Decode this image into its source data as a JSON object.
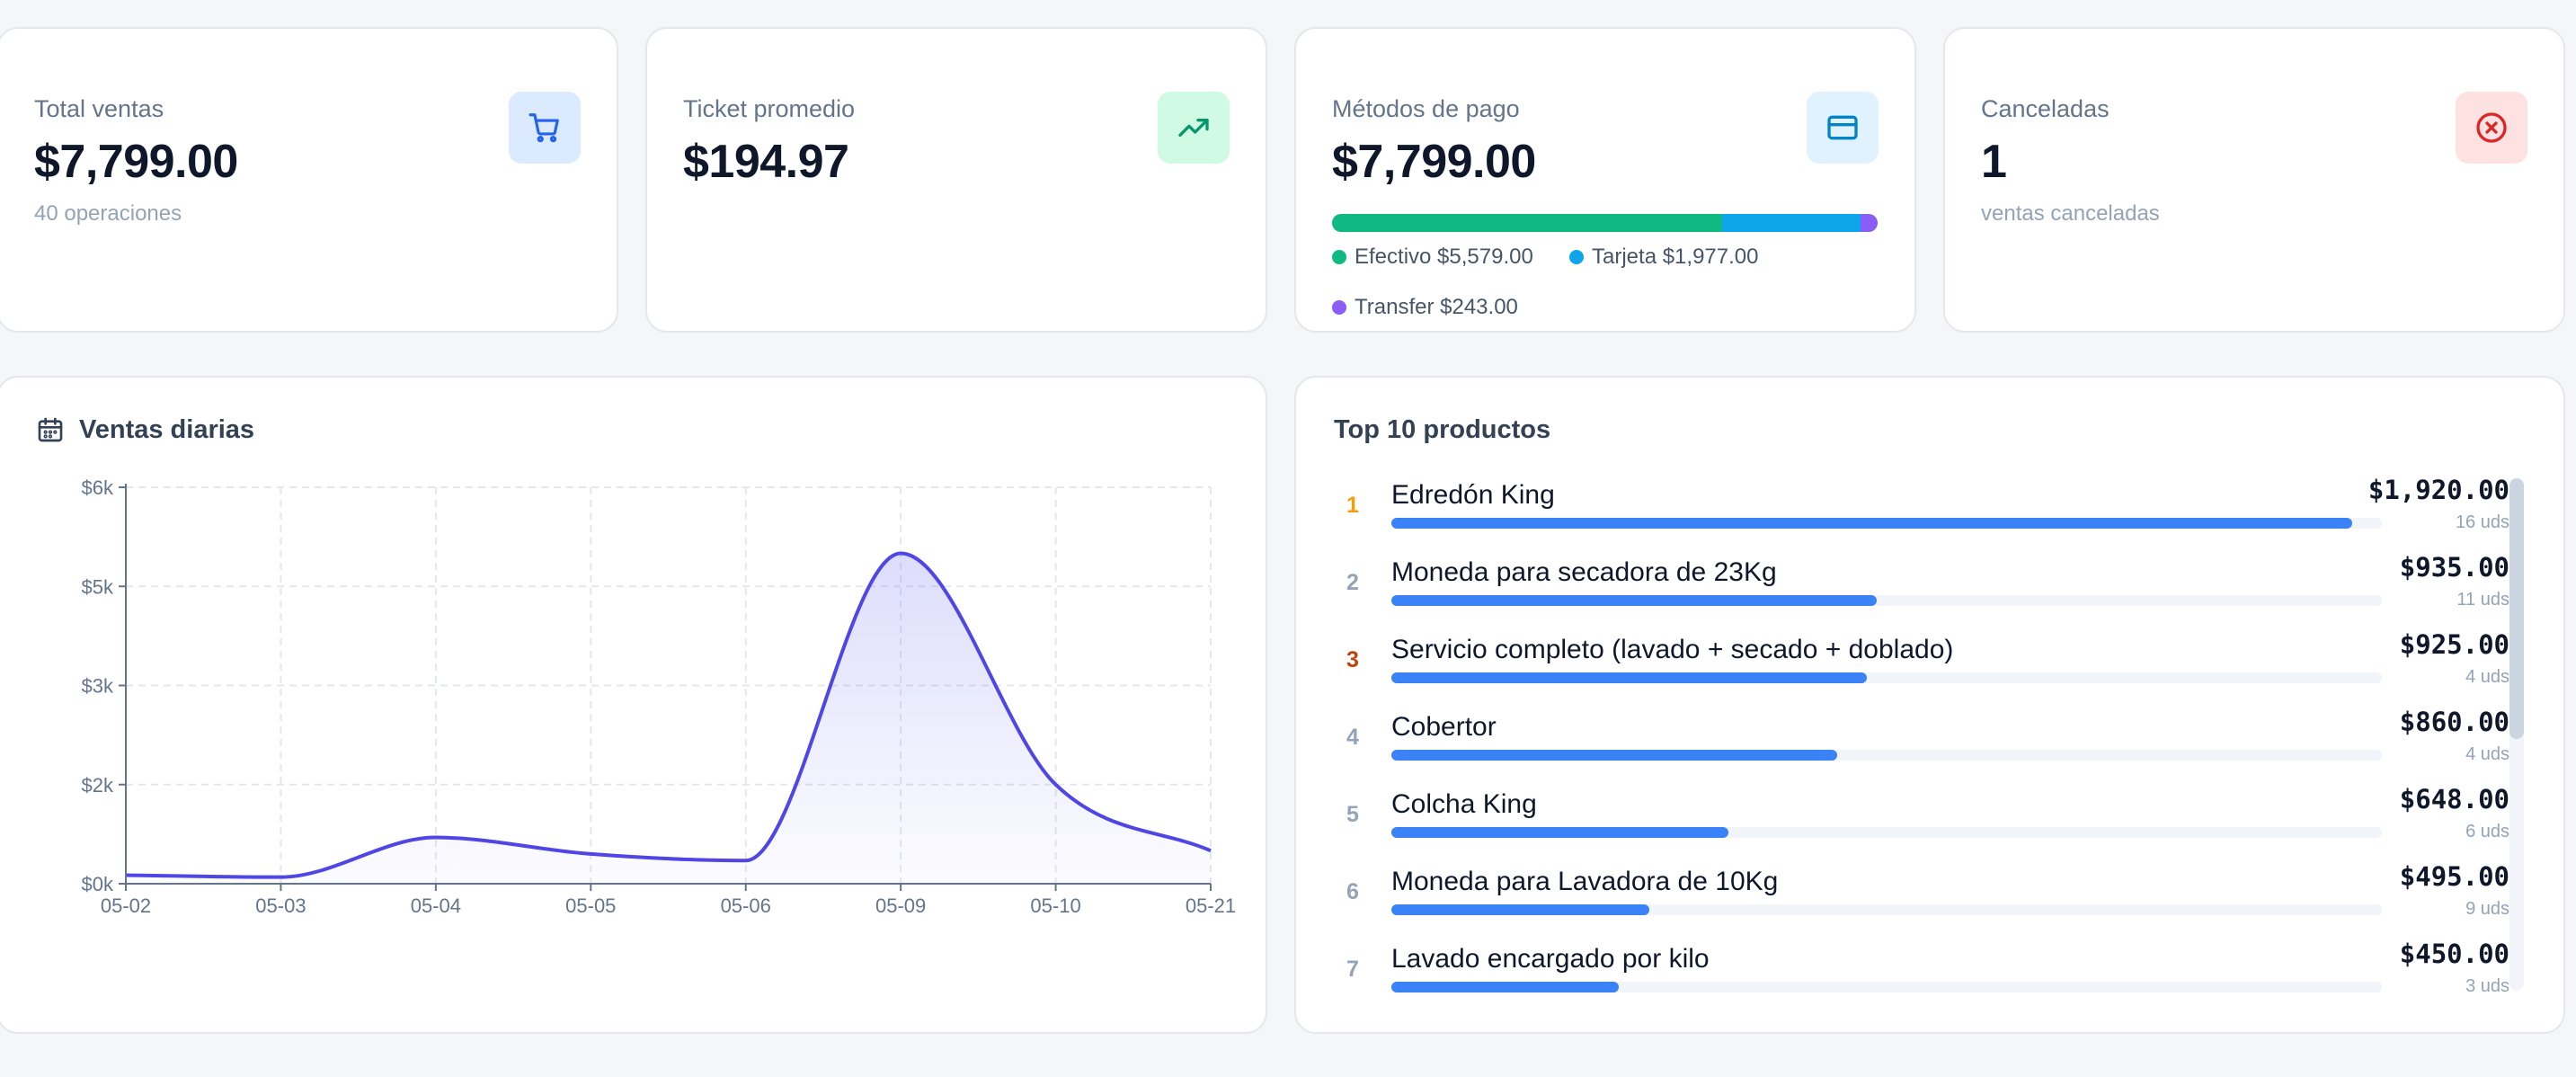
{
  "colors": {
    "accent_blue": "#3b82f6",
    "line_indigo": "#4f46e5",
    "green": "#10b981",
    "sky": "#0ea5e9",
    "purple": "#8b5cf6",
    "red": "#ef4444",
    "gold": "#f59e0b",
    "bronze": "#c2410c"
  },
  "kpis": {
    "total_sales": {
      "label": "Total ventas",
      "value": "$7,799.00",
      "sub": "40 operaciones",
      "icon": "cart-icon"
    },
    "avg_ticket": {
      "label": "Ticket promedio",
      "value": "$194.97",
      "icon": "trending-up-icon"
    },
    "payment_methods": {
      "label": "Métodos de pago",
      "value": "$7,799.00",
      "icon": "credit-card-icon",
      "split": [
        {
          "label": "Efectivo $5,579.00",
          "amount": 5579,
          "color": "#10b981"
        },
        {
          "label": "Tarjeta $1,977.00",
          "amount": 1977,
          "color": "#0ea5e9"
        },
        {
          "label": "Transfer $243.00",
          "amount": 243,
          "color": "#8b5cf6"
        }
      ]
    },
    "cancelled": {
      "label": "Canceladas",
      "value": "1",
      "sub": "ventas canceladas",
      "icon": "x-circle-icon"
    }
  },
  "daily_panel": {
    "title": "Ventas diarias",
    "icon": "calendar-icon"
  },
  "chart_data": {
    "type": "area",
    "title": "Ventas diarias",
    "x": [
      "05-02",
      "05-03",
      "05-04",
      "05-05",
      "05-06",
      "05-09",
      "05-10",
      "05-21"
    ],
    "series": [
      {
        "values": [
          130,
          100,
          700,
          450,
          350,
          5000,
          1500,
          500
        ]
      }
    ],
    "y_ticks": [
      "$0k",
      "$2k",
      "$3k",
      "$5k",
      "$6k"
    ],
    "ylim": [
      0,
      6000
    ],
    "grid": true
  },
  "top_panel": {
    "title": "Top 10 productos",
    "items": [
      {
        "rank": "1",
        "name": "Edredón King",
        "amount": "$1,920.00",
        "units": "16 uds",
        "share": 0.97
      },
      {
        "rank": "2",
        "name": "Moneda para secadora de 23Kg",
        "amount": "$935.00",
        "units": "11 uds",
        "share": 0.49
      },
      {
        "rank": "3",
        "name": "Servicio completo (lavado + secado + doblado)",
        "amount": "$925.00",
        "units": "4 uds",
        "share": 0.48
      },
      {
        "rank": "4",
        "name": "Cobertor",
        "amount": "$860.00",
        "units": "4 uds",
        "share": 0.45
      },
      {
        "rank": "5",
        "name": "Colcha King",
        "amount": "$648.00",
        "units": "6 uds",
        "share": 0.34
      },
      {
        "rank": "6",
        "name": "Moneda para Lavadora de 10Kg",
        "amount": "$495.00",
        "units": "9 uds",
        "share": 0.26
      },
      {
        "rank": "7",
        "name": "Lavado encargado por kilo",
        "amount": "$450.00",
        "units": "3 uds",
        "share": 0.23
      }
    ]
  }
}
